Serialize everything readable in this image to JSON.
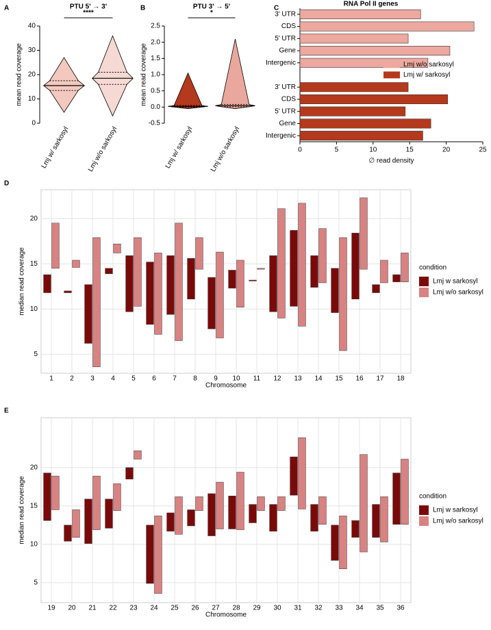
{
  "chart_data": [
    {
      "type": "violin",
      "label": "A",
      "title": "PTU 5' → 3'",
      "y_label": "mean read coverage",
      "annotation": "****",
      "categories": [
        "Lmj w/ sarkosyl",
        "Lmj w/o sarkosyl"
      ],
      "stats": {
        "min": [
          4.5,
          3
        ],
        "q1": [
          13.5,
          16
        ],
        "median": [
          15.5,
          18.5
        ],
        "q3": [
          17.5,
          21
        ],
        "max": [
          27,
          36
        ]
      },
      "colors": [
        "#f3c9bf",
        "#f6d9d2"
      ],
      "ylim": [
        0,
        40
      ],
      "yticks": [
        0,
        10,
        20,
        30,
        40
      ]
    },
    {
      "type": "violin",
      "label": "B",
      "title": "PTU 3' → 5'",
      "y_label": "mean read coverage",
      "annotation": "*",
      "categories": [
        "Lmj w/ sarkosyl",
        "Lmj w/o sarkosyl"
      ],
      "stats": {
        "min": [
          -0.05,
          -0.05
        ],
        "q1": [
          0.0,
          0.01
        ],
        "median": [
          0.02,
          0.04
        ],
        "q3": [
          0.05,
          0.08
        ],
        "max": [
          1.05,
          2.1
        ]
      },
      "colors": [
        "#b5391c",
        "#eaa79d"
      ],
      "ylim": [
        -0.5,
        2.5
      ],
      "yticks": [
        {
          "value": -0.5,
          "label": "-0.5"
        },
        {
          "value": 0,
          "label": "0.0"
        },
        {
          "value": 0.5,
          "label": "0.5"
        },
        {
          "value": 1,
          "label": "1.0"
        },
        {
          "value": 1.5,
          "label": "1.5"
        },
        {
          "value": 2,
          "label": "2.0"
        },
        {
          "value": 2.5,
          "label": "2.5"
        }
      ]
    },
    {
      "type": "hbar",
      "label": "C",
      "title": "RNA Pol II genes",
      "x_label": "∅ read density",
      "categories": [
        "3' UTR",
        "CDS",
        "5' UTR",
        "Gene",
        "Intergenic"
      ],
      "series": [
        {
          "name": "Lmj w/o sarkosyl",
          "color": "#eda89f",
          "values": [
            16.5,
            23.8,
            14.8,
            20.5,
            17.5
          ]
        },
        {
          "name": "Lmj w/ sarkosyl",
          "color": "#b5391c",
          "values": [
            14.8,
            20.2,
            14.4,
            17.9,
            16.8
          ]
        }
      ],
      "xlim": [
        0,
        25
      ],
      "xticks": [
        0,
        5,
        10,
        15,
        20,
        25
      ],
      "legend": "right"
    },
    {
      "type": "range",
      "label": "D",
      "x_label": "Chromosome",
      "y_label": "median read coverage",
      "legend_title": "condition",
      "categories": [
        "1",
        "2",
        "3",
        "4",
        "5",
        "6",
        "7",
        "8",
        "9",
        "10",
        "11",
        "12",
        "13",
        "14",
        "15",
        "16",
        "17",
        "18"
      ],
      "series": [
        {
          "name": "Lmj w sarkosyl",
          "color": "#7a0a0a",
          "low": [
            11.8,
            11.8,
            6.2,
            13.9,
            9.7,
            8.3,
            9.4,
            11.1,
            7.8,
            12.3,
            13.1,
            9.7,
            10.3,
            12.4,
            9.6,
            11.1,
            11.8,
            13.0
          ],
          "high": [
            13.8,
            12.0,
            12.7,
            14.5,
            15.9,
            15.2,
            15.9,
            15.6,
            13.5,
            14.3,
            13.2,
            15.9,
            18.7,
            15.9,
            14.5,
            18.4,
            12.7,
            13.8
          ]
        },
        {
          "name": "Lmj w/o sarkosyl",
          "color": "#d98282",
          "low": [
            14.5,
            14.6,
            3.6,
            16.2,
            10.3,
            7.2,
            6.5,
            14.4,
            6.8,
            10.2,
            14.4,
            9.0,
            8.1,
            12.9,
            5.4,
            14.4,
            12.9,
            13.0
          ],
          "high": [
            19.5,
            15.4,
            17.9,
            17.2,
            17.9,
            16.2,
            19.5,
            17.9,
            16.3,
            15.4,
            14.5,
            21.1,
            21.7,
            18.9,
            17.9,
            22.3,
            15.4,
            16.2
          ]
        }
      ],
      "ylim": [
        2.9,
        23.2
      ],
      "yticks": [
        5,
        10,
        15,
        20
      ],
      "grid": true,
      "legend": "right"
    },
    {
      "type": "range",
      "label": "E",
      "x_label": "Chromosome",
      "y_label": "median read coverage",
      "legend_title": "condition",
      "categories": [
        "19",
        "20",
        "21",
        "22",
        "23",
        "24",
        "25",
        "26",
        "27",
        "28",
        "29",
        "30",
        "31",
        "32",
        "33",
        "34",
        "35",
        "36"
      ],
      "series": [
        {
          "name": "Lmj w sarkosyl",
          "color": "#7a0a0a",
          "low": [
            13.1,
            10.4,
            10.1,
            12.1,
            18.5,
            4.9,
            11.7,
            12.4,
            11.1,
            12.0,
            12.8,
            11.7,
            16.4,
            11.7,
            7.9,
            10.9,
            10.9,
            12.6
          ],
          "high": [
            19.3,
            12.5,
            15.9,
            15.9,
            20.0,
            12.5,
            14.1,
            14.5,
            16.6,
            16.3,
            15.2,
            15.2,
            21.4,
            15.2,
            12.5,
            13.1,
            15.2,
            19.3
          ]
        },
        {
          "name": "Lmj w/o sarkosyl",
          "color": "#d98282",
          "low": [
            14.5,
            10.9,
            11.9,
            14.4,
            21.1,
            3.6,
            11.3,
            14.4,
            12.0,
            11.9,
            14.4,
            14.4,
            14.6,
            12.6,
            6.8,
            9.0,
            10.3,
            12.6
          ],
          "high": [
            18.9,
            14.5,
            18.9,
            17.9,
            22.2,
            13.7,
            16.2,
            16.2,
            18.1,
            19.4,
            16.2,
            16.2,
            23.9,
            16.2,
            13.7,
            21.7,
            16.2,
            21.1
          ]
        }
      ],
      "ylim": [
        2.4,
        26.5
      ],
      "yticks": [
        5,
        10,
        15,
        20
      ],
      "grid": true,
      "legend": "right"
    }
  ]
}
